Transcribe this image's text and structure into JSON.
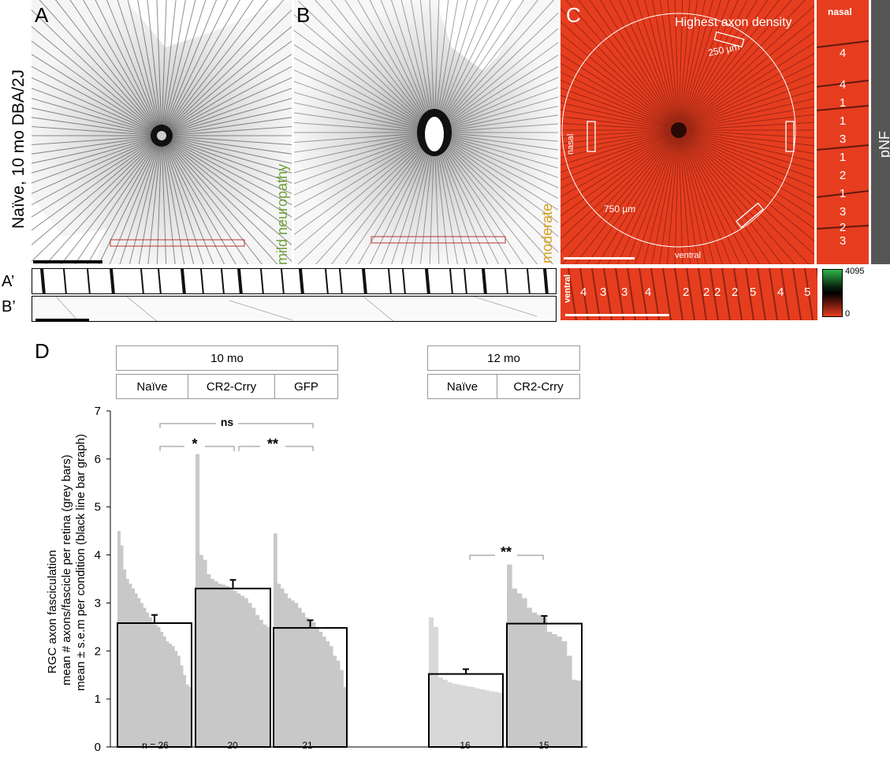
{
  "top_row": {
    "label_A": "A",
    "label_B": "B",
    "label_C": "C",
    "label_Aprime": "A’",
    "label_Bprime": "B’",
    "left_vertical_label": "Naïve, 10 mo DBA/2J",
    "mild_label": "mild neuropathy",
    "moderate_label": "moderate",
    "C_title": "Highest axon density",
    "C_250": "250 µm",
    "C_750": "750 µm",
    "C_nasal": "nasal",
    "C_ventral": "ventral",
    "strip_nasal": "nasal",
    "strip_ventral": "ventral",
    "pNF": "pNF",
    "cbar_max": "4095",
    "cbar_min": "0",
    "vertical_strip_counts": [
      "4",
      "4",
      "1",
      "1",
      "3",
      "1",
      "2",
      "1",
      "3",
      "2",
      "3"
    ],
    "horizontal_strip_counts": [
      "4",
      "3",
      "3",
      "4",
      "2",
      "2",
      "2",
      "2",
      "5",
      "4",
      "5"
    ],
    "colors": {
      "C_background": "#e63d1f",
      "green": "#4db848",
      "olive_text": "#6fa23a",
      "gold_text": "#d6a020"
    }
  },
  "panel_D": {
    "label": "D",
    "group_10mo": "10 mo",
    "group_12mo": "12 mo",
    "cond_10mo": [
      "Naïve",
      "CR2-Crry",
      "GFP"
    ],
    "cond_12mo": [
      "Naïve",
      "CR2-Crry"
    ],
    "ylabel_line1": "RGC axon fasciculation",
    "ylabel_line2": "mean # axons/fascicle per retina (grey bars)",
    "ylabel_line3": "mean ± s.e.m per condition (black line bar graph)",
    "n_labels": [
      "n = 26",
      "20",
      "21",
      "16",
      "15"
    ],
    "sig_ns": "ns",
    "sig_star": "*",
    "sig_2star_a": "**",
    "sig_2star_b": "**"
  },
  "chart_data": {
    "type": "bar",
    "ylim": [
      0,
      7
    ],
    "yticks": [
      "0",
      "1",
      "2",
      "3",
      "4",
      "5",
      "6",
      "7"
    ],
    "grid": false,
    "categories": [
      "10 mo Naïve",
      "10 mo CR2-Crry",
      "10 mo GFP",
      "12 mo Naïve",
      "12 mo CR2-Crry"
    ],
    "means": [
      2.58,
      3.3,
      2.48,
      1.52,
      2.57
    ],
    "sem": [
      0.17,
      0.18,
      0.16,
      0.1,
      0.16
    ],
    "n": [
      26,
      20,
      21,
      16,
      15
    ],
    "per_retina_values": [
      [
        4.5,
        4.2,
        3.7,
        3.5,
        3.4,
        3.3,
        3.2,
        3.1,
        3.0,
        2.9,
        2.8,
        2.7,
        2.6,
        2.55,
        2.5,
        2.4,
        2.3,
        2.2,
        2.15,
        2.1,
        2.0,
        1.9,
        1.7,
        1.5,
        1.3,
        1.25
      ],
      [
        6.1,
        4.0,
        3.9,
        3.6,
        3.5,
        3.45,
        3.4,
        3.38,
        3.35,
        3.3,
        3.25,
        3.2,
        3.15,
        3.1,
        3.0,
        2.9,
        2.75,
        2.65,
        2.55,
        2.5
      ],
      [
        4.45,
        3.4,
        3.3,
        3.2,
        3.1,
        3.05,
        3.0,
        2.9,
        2.8,
        2.7,
        2.65,
        2.6,
        2.5,
        2.4,
        2.3,
        2.2,
        2.1,
        1.9,
        1.8,
        1.6,
        1.25
      ],
      [
        2.7,
        2.5,
        1.45,
        1.4,
        1.35,
        1.32,
        1.3,
        1.28,
        1.26,
        1.25,
        1.22,
        1.2,
        1.18,
        1.16,
        1.15,
        1.13
      ],
      [
        3.8,
        3.3,
        3.2,
        3.1,
        2.9,
        2.8,
        2.75,
        2.7,
        2.4,
        2.35,
        2.3,
        2.2,
        1.9,
        1.4,
        1.38
      ]
    ],
    "bar_fill_colors": [
      "#c8c8c8",
      "#c8c8c8",
      "#c8c8c8",
      "#d8d8d8",
      "#c8c8c8"
    ]
  }
}
